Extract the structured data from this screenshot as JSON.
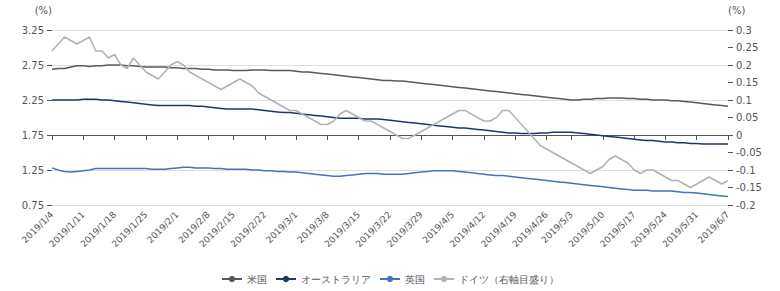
{
  "chart_data": {
    "type": "line",
    "ylabel": "(%)",
    "y2label": "(%)",
    "categories": [
      "2019/1/4",
      null,
      null,
      null,
      null,
      "2019/1/11",
      null,
      null,
      null,
      null,
      "2019/1/18",
      null,
      null,
      null,
      null,
      "2019/1/25",
      null,
      null,
      null,
      null,
      "2019/2/1",
      null,
      null,
      null,
      null,
      "2019/2/8",
      null,
      null,
      null,
      "2019/2/15",
      null,
      null,
      null,
      null,
      "2019/2/22",
      null,
      null,
      null,
      null,
      "2019/3/1",
      null,
      null,
      null,
      null,
      "2019/3/8",
      null,
      null,
      null,
      null,
      "2019/3/15",
      null,
      null,
      null,
      null,
      "2019/3/22",
      null,
      null,
      null,
      null,
      "2019/3/29",
      null,
      null,
      null,
      null,
      "2019/4/5",
      null,
      null,
      null,
      null,
      "2019/4/12",
      null,
      null,
      null,
      null,
      "2019/4/19",
      null,
      null,
      null,
      null,
      "2019/4/26",
      null,
      null,
      null,
      "2019/5/3",
      null,
      null,
      null,
      null,
      "2019/5/10",
      null,
      null,
      null,
      null,
      "2019/5/17",
      null,
      null,
      null,
      null,
      "2019/5/24",
      null,
      null,
      null,
      null,
      "2019/5/31",
      null,
      null,
      null,
      null,
      "2019/6/7"
    ],
    "series": [
      {
        "name": "米国",
        "color": "#595959",
        "values": [
          2.69,
          2.7,
          2.7,
          2.72,
          2.74,
          2.74,
          2.73,
          2.74,
          2.74,
          2.75,
          2.75,
          2.75,
          2.74,
          2.74,
          2.73,
          2.72,
          2.72,
          2.72,
          2.72,
          2.71,
          2.71,
          2.7,
          2.7,
          2.7,
          2.69,
          2.69,
          2.68,
          2.68,
          2.68,
          2.67,
          2.67,
          2.67,
          2.68,
          2.68,
          2.68,
          2.67,
          2.67,
          2.67,
          2.67,
          2.66,
          2.65,
          2.65,
          2.64,
          2.63,
          2.62,
          2.61,
          2.6,
          2.59,
          2.58,
          2.57,
          2.56,
          2.55,
          2.54,
          2.53,
          2.53,
          2.52,
          2.52,
          2.51,
          2.5,
          2.49,
          2.48,
          2.47,
          2.46,
          2.45,
          2.44,
          2.43,
          2.42,
          2.41,
          2.4,
          2.39,
          2.38,
          2.37,
          2.36,
          2.35,
          2.34,
          2.33,
          2.32,
          2.31,
          2.3,
          2.29,
          2.28,
          2.27,
          2.26,
          2.25,
          2.25,
          2.26,
          2.26,
          2.27,
          2.27,
          2.28,
          2.28,
          2.28,
          2.27,
          2.27,
          2.26,
          2.26,
          2.25,
          2.25,
          2.25,
          2.24,
          2.24,
          2.23,
          2.22,
          2.21,
          2.2,
          2.19,
          2.18,
          2.17,
          2.16
        ]
      },
      {
        "name": "オーストラリア",
        "color": "#1f3864",
        "values": [
          2.25,
          2.25,
          2.25,
          2.25,
          2.25,
          2.26,
          2.26,
          2.26,
          2.25,
          2.25,
          2.24,
          2.23,
          2.22,
          2.21,
          2.2,
          2.19,
          2.18,
          2.17,
          2.17,
          2.17,
          2.17,
          2.17,
          2.17,
          2.16,
          2.16,
          2.15,
          2.14,
          2.13,
          2.12,
          2.12,
          2.12,
          2.12,
          2.12,
          2.11,
          2.1,
          2.09,
          2.08,
          2.07,
          2.07,
          2.06,
          2.05,
          2.04,
          2.03,
          2.02,
          2.01,
          2.0,
          1.99,
          1.99,
          1.99,
          1.99,
          1.98,
          1.98,
          1.98,
          1.97,
          1.96,
          1.95,
          1.94,
          1.93,
          1.92,
          1.91,
          1.9,
          1.89,
          1.88,
          1.87,
          1.86,
          1.85,
          1.85,
          1.84,
          1.83,
          1.82,
          1.81,
          1.8,
          1.79,
          1.78,
          1.78,
          1.77,
          1.77,
          1.77,
          1.78,
          1.78,
          1.79,
          1.79,
          1.79,
          1.79,
          1.78,
          1.77,
          1.76,
          1.75,
          1.74,
          1.73,
          1.72,
          1.71,
          1.7,
          1.69,
          1.68,
          1.67,
          1.67,
          1.66,
          1.65,
          1.65,
          1.64,
          1.64,
          1.63,
          1.63,
          1.62,
          1.62,
          1.62,
          1.62,
          1.62
        ]
      },
      {
        "name": "英国",
        "color": "#4472c4",
        "values": [
          1.28,
          1.25,
          1.23,
          1.22,
          1.23,
          1.24,
          1.25,
          1.27,
          1.27,
          1.27,
          1.27,
          1.27,
          1.27,
          1.27,
          1.27,
          1.27,
          1.26,
          1.26,
          1.26,
          1.27,
          1.28,
          1.29,
          1.29,
          1.28,
          1.28,
          1.28,
          1.27,
          1.27,
          1.26,
          1.26,
          1.26,
          1.26,
          1.25,
          1.25,
          1.24,
          1.24,
          1.23,
          1.23,
          1.22,
          1.22,
          1.21,
          1.2,
          1.19,
          1.18,
          1.17,
          1.16,
          1.16,
          1.17,
          1.18,
          1.19,
          1.2,
          1.2,
          1.2,
          1.19,
          1.19,
          1.19,
          1.19,
          1.2,
          1.21,
          1.22,
          1.23,
          1.24,
          1.24,
          1.24,
          1.24,
          1.23,
          1.22,
          1.21,
          1.2,
          1.19,
          1.18,
          1.17,
          1.17,
          1.16,
          1.15,
          1.14,
          1.13,
          1.12,
          1.11,
          1.1,
          1.09,
          1.08,
          1.07,
          1.06,
          1.05,
          1.04,
          1.03,
          1.02,
          1.01,
          1.0,
          0.99,
          0.98,
          0.97,
          0.96,
          0.96,
          0.96,
          0.95,
          0.95,
          0.95,
          0.95,
          0.94,
          0.93,
          0.93,
          0.92,
          0.91,
          0.9,
          0.89,
          0.88,
          0.87
        ]
      },
      {
        "name": "ドイツ（右軸目盛り）",
        "color": "#b2b2b2",
        "axis": "y2",
        "values": [
          0.24,
          0.26,
          0.28,
          0.27,
          0.26,
          0.27,
          0.28,
          0.24,
          0.24,
          0.22,
          0.23,
          0.2,
          0.19,
          0.22,
          0.2,
          0.18,
          0.17,
          0.16,
          0.18,
          0.2,
          0.21,
          0.2,
          0.18,
          0.17,
          0.16,
          0.15,
          0.14,
          0.13,
          0.14,
          0.15,
          0.16,
          0.15,
          0.14,
          0.12,
          0.11,
          0.1,
          0.09,
          0.08,
          0.07,
          0.07,
          0.06,
          0.05,
          0.04,
          0.03,
          0.03,
          0.04,
          0.06,
          0.07,
          0.06,
          0.05,
          0.04,
          0.04,
          0.03,
          0.02,
          0.01,
          0.0,
          -0.01,
          -0.01,
          0.0,
          0.01,
          0.02,
          0.03,
          0.04,
          0.05,
          0.06,
          0.07,
          0.07,
          0.06,
          0.05,
          0.04,
          0.04,
          0.05,
          0.07,
          0.07,
          0.05,
          0.03,
          0.01,
          -0.01,
          -0.03,
          -0.04,
          -0.05,
          -0.06,
          -0.07,
          -0.08,
          -0.09,
          -0.1,
          -0.11,
          -0.1,
          -0.09,
          -0.07,
          -0.06,
          -0.07,
          -0.08,
          -0.1,
          -0.11,
          -0.1,
          -0.1,
          -0.11,
          -0.12,
          -0.13,
          -0.13,
          -0.14,
          -0.15,
          -0.14,
          -0.13,
          -0.12,
          -0.13,
          -0.14,
          -0.13
        ]
      }
    ],
    "ylim": [
      0.75,
      3.25
    ],
    "yticks": [
      0.75,
      1.25,
      1.75,
      2.25,
      2.75,
      3.25
    ],
    "y2lim": [
      -0.2,
      0.3
    ],
    "y2ticks": [
      -0.2,
      -0.15,
      -0.1,
      -0.05,
      0,
      0.05,
      0.1,
      0.15,
      0.2,
      0.25,
      0.3
    ],
    "grid": true,
    "legend": "bottom"
  }
}
